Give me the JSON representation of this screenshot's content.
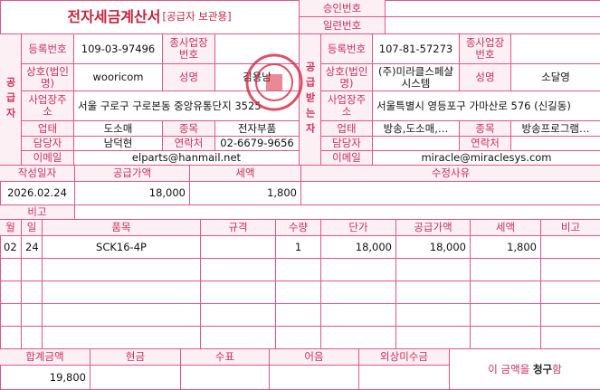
{
  "header": {
    "title": "전자세금계산서",
    "subtitle": "[공급자 보관용]",
    "approval_label": "승인번호",
    "serial_label": "일련번호"
  },
  "supplier": {
    "side_label": "공급자",
    "reg_no_label": "등록번호",
    "reg_no": "109-03-97496",
    "sub_no_label": "종사업장번호",
    "name_label": "상호(법인명)",
    "name": "wooricom",
    "ceo_label": "성명",
    "ceo": "김용남",
    "address_label": "사업장주소",
    "address": "서울 구로구 구로본동 중앙유통단지 3525",
    "business_label": "업태",
    "business": "도소매",
    "item_label": "종목",
    "item": "전자부품",
    "contact_label": "담당자",
    "contact": "남덕현",
    "phone_label": "연락처",
    "phone": "02-6679-9656",
    "email_label": "이메일",
    "email": "elparts@hanmail.net"
  },
  "buyer": {
    "side_label": "공급받는자",
    "reg_no_label": "등록번호",
    "reg_no": "107-81-57273",
    "sub_no_label": "종사업장번호",
    "name_label": "상호(법인명)",
    "name": "(주)미라클스페샬시스템",
    "ceo_label": "성명",
    "ceo": "소달영",
    "address_label": "사업장주소",
    "address": "서울특별시 영등포구 가마산로 576 (신길동)",
    "business_label": "업태",
    "business": "방송,도소매,…",
    "item_label": "종목",
    "item": "방송프로그램…",
    "contact_label": "담당자",
    "phone_label": "연락처",
    "email_label": "이메일",
    "email": "miracle@miraclesys.com"
  },
  "summary": {
    "date_label": "작성일자",
    "date": "2026.02.24",
    "supply_label": "공급가액",
    "supply": "18,000",
    "tax_label": "세액",
    "tax": "1,800",
    "reason_label": "수정사유",
    "remark_label": "비고"
  },
  "items": {
    "headers": [
      "월",
      "일",
      "품목",
      "규격",
      "수량",
      "단가",
      "공급가액",
      "세액",
      "비고"
    ],
    "rows": [
      {
        "month": "02",
        "day": "24",
        "name": "SCK16-4P",
        "qty": "1",
        "unit_price": "18,000",
        "supply": "18,000",
        "tax": "1,800"
      }
    ]
  },
  "footer": {
    "total_label": "합계금액",
    "total": "19,800",
    "cash_label": "현금",
    "check_label": "수표",
    "note_label": "어음",
    "credit_label": "외상미수금",
    "claim": [
      "이 금액을",
      "청구",
      "함"
    ]
  }
}
